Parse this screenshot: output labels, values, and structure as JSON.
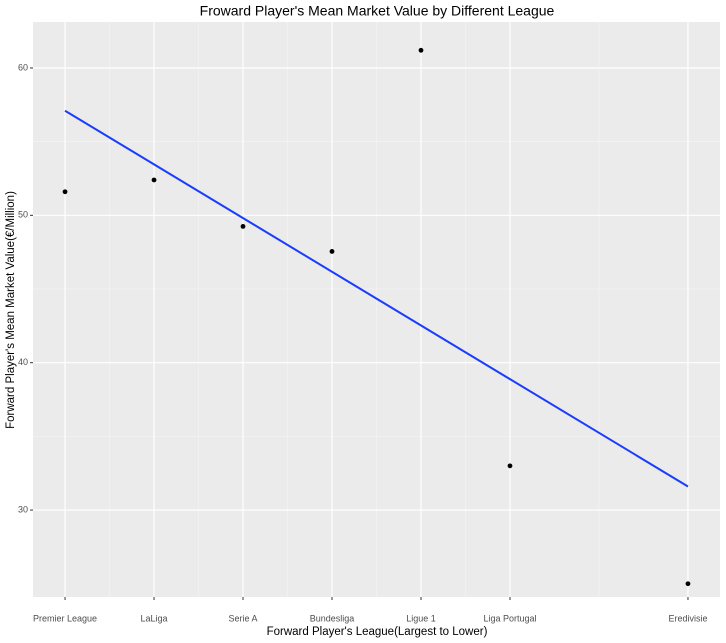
{
  "chart_data": {
    "type": "scatter",
    "title": "Froward Player's Mean Market Value by Different League",
    "x_label": "Forward Player's League(Largest to Lower)",
    "y_label": "Forward Player's Mean Market Value(€/Million)",
    "x": [
      1,
      2,
      3,
      4,
      5,
      6,
      8
    ],
    "values": [
      51.6,
      52.4,
      49.25,
      47.55,
      61.2,
      33.0,
      25.0
    ],
    "color": "#000000",
    "trend_line": {
      "x": [
        1,
        8
      ],
      "values": [
        57.1,
        31.6
      ],
      "color": "#1a3cff"
    },
    "xlim": [
      0.64,
      8.36
    ],
    "ylim": [
      24.1,
      63.12
    ],
    "xticks": [
      {
        "value": 1,
        "label": "Premier League"
      },
      {
        "value": 2,
        "label": "LaLiga"
      },
      {
        "value": 3,
        "label": "Serie A"
      },
      {
        "value": 4,
        "label": "Bundesliga"
      },
      {
        "value": 5,
        "label": "Ligue 1"
      },
      {
        "value": 6,
        "label": "Liga Portugal"
      },
      {
        "value": 8,
        "label": "Eredivisie"
      }
    ],
    "yticks": [
      30,
      40,
      50,
      60
    ],
    "grid": true
  }
}
